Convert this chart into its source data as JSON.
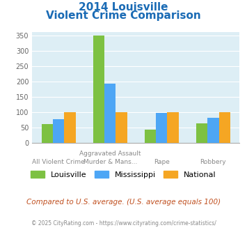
{
  "title_line1": "2014 Louisville",
  "title_line2": "Violent Crime Comparison",
  "category_labels_top": [
    "",
    "Aggravated Assault",
    "",
    ""
  ],
  "category_labels_bottom": [
    "All Violent Crime",
    "Murder & Mans...",
    "Rape",
    "Robbery"
  ],
  "louisville": [
    60,
    348,
    43,
    62
  ],
  "mississippi": [
    76,
    193,
    97,
    80
  ],
  "national": [
    100,
    100,
    100,
    100
  ],
  "louisville_color": "#7dc142",
  "mississippi_color": "#4da6f5",
  "national_color": "#f5a623",
  "bg_color": "#ddeef5",
  "title_color": "#1a6bb5",
  "ylim": [
    0,
    360
  ],
  "yticks": [
    0,
    50,
    100,
    150,
    200,
    250,
    300,
    350
  ],
  "footer_text": "Compared to U.S. average. (U.S. average equals 100)",
  "copyright_text": "© 2025 CityRating.com - https://www.cityrating.com/crime-statistics/",
  "legend_labels": [
    "Louisville",
    "Mississippi",
    "National"
  ]
}
